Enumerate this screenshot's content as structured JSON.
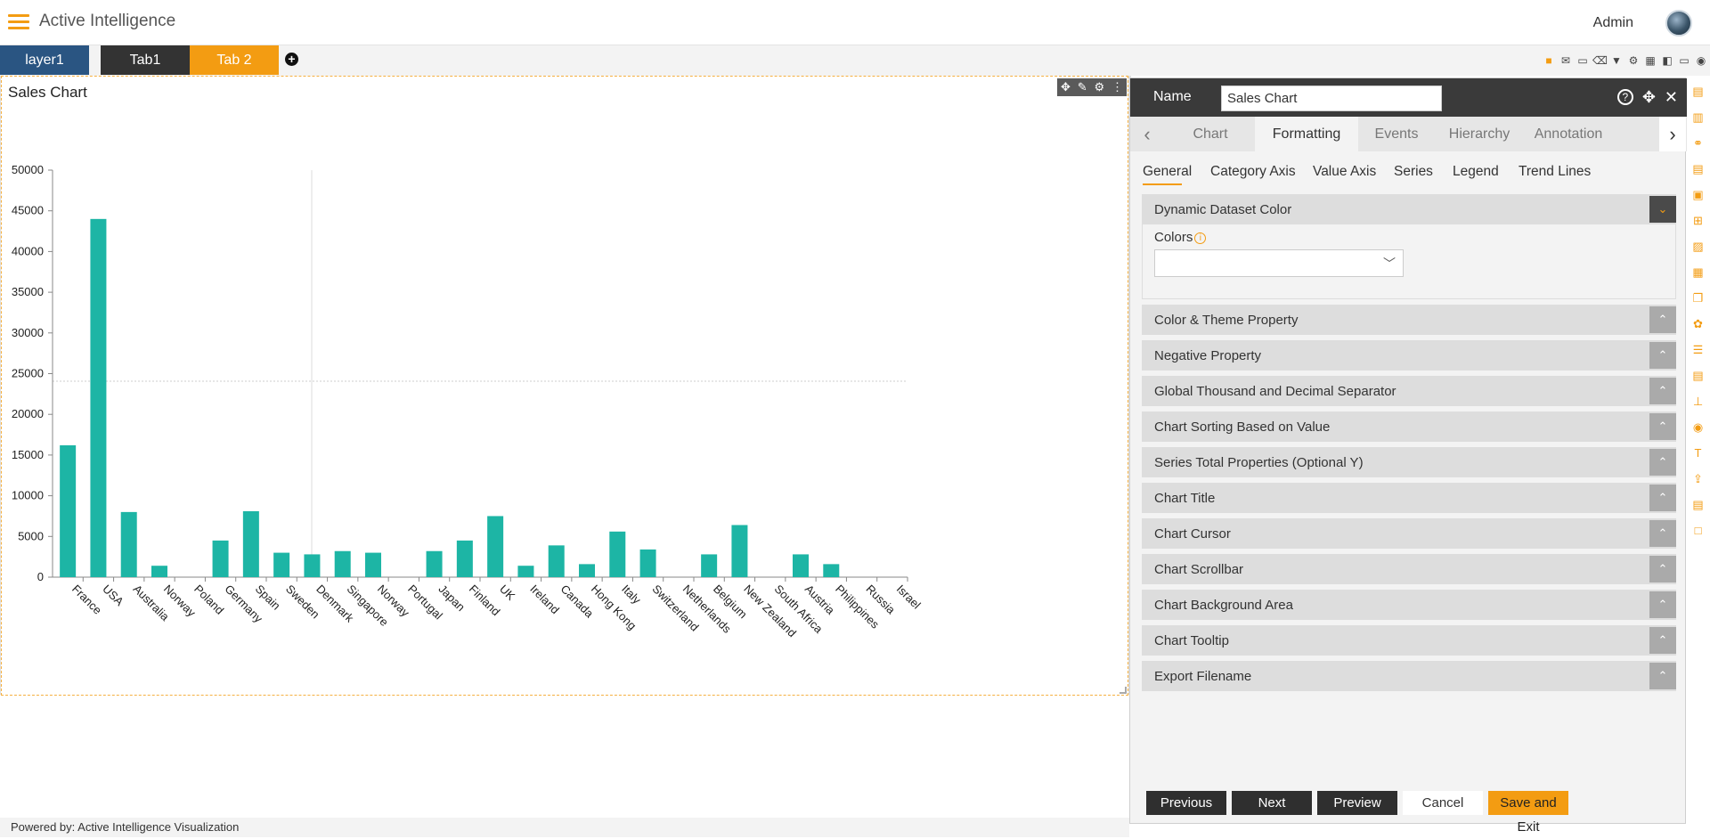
{
  "header": {
    "app_title": "Active Intelligence",
    "user_label": "Admin"
  },
  "tabs": [
    {
      "label": "layer1"
    },
    {
      "label": "Tab1"
    },
    {
      "label": "Tab 2"
    }
  ],
  "widget": {
    "title": "Sales Chart"
  },
  "footer": {
    "text": "Powered by: Active Intelligence Visualization"
  },
  "panel": {
    "name_label": "Name",
    "name_value": "Sales Chart",
    "main_tabs": [
      "Chart",
      "Formatting",
      "Events",
      "Hierarchy",
      "Annotation"
    ],
    "active_main_tab": "Formatting",
    "sub_tabs": [
      "General",
      "Category Axis",
      "Value Axis",
      "Series",
      "Legend",
      "Trend Lines"
    ],
    "active_sub_tab": "General",
    "open_section": "Dynamic Dataset Color",
    "colors_label": "Colors",
    "sections": [
      "Color & Theme Property",
      "Negative Property",
      "Global Thousand and Decimal Separator",
      "Chart Sorting Based on Value",
      "Series Total Properties (Optional Y)",
      "Chart Title",
      "Chart Cursor",
      "Chart Scrollbar",
      "Chart Background Area",
      "Chart Tooltip",
      "Export Filename"
    ],
    "buttons": {
      "previous": "Previous",
      "next": "Next",
      "preview": "Preview",
      "cancel": "Cancel",
      "save_exit": "Save and Exit"
    }
  },
  "colors": {
    "accent": "#f39c12",
    "bar": "#1db5a5",
    "tab_layer": "#2a5582",
    "tab_dark": "#333333"
  },
  "chart_data": {
    "type": "bar",
    "title": "Sales Chart",
    "categories": [
      "France",
      "USA",
      "Australia",
      "Norway",
      "Poland",
      "Germany",
      "Spain",
      "Sweden",
      "Denmark",
      "Singapore",
      "Norway",
      "Portugal",
      "Japan",
      "Finland",
      "UK",
      "Ireland",
      "Canada",
      "Hong Kong",
      "Italy",
      "Switzerland",
      "Netherlands",
      "Belgium",
      "New Zealand",
      "South Africa",
      "Austria",
      "Philippines",
      "Russia",
      "Israel"
    ],
    "values": [
      16200,
      44000,
      8000,
      1400,
      0,
      4500,
      8100,
      3000,
      2800,
      3200,
      3000,
      0,
      3200,
      4500,
      7500,
      1400,
      3900,
      1600,
      5600,
      3400,
      0,
      2800,
      6400,
      0,
      2800,
      1600,
      0,
      0
    ],
    "y_ticks": [
      "0",
      "5000",
      "10000",
      "15000",
      "20000",
      "25000",
      "30000",
      "35000",
      "40000",
      "45000",
      "50000"
    ],
    "ylim": [
      0,
      50000
    ],
    "grid": false,
    "xlabel": "",
    "ylabel": ""
  }
}
